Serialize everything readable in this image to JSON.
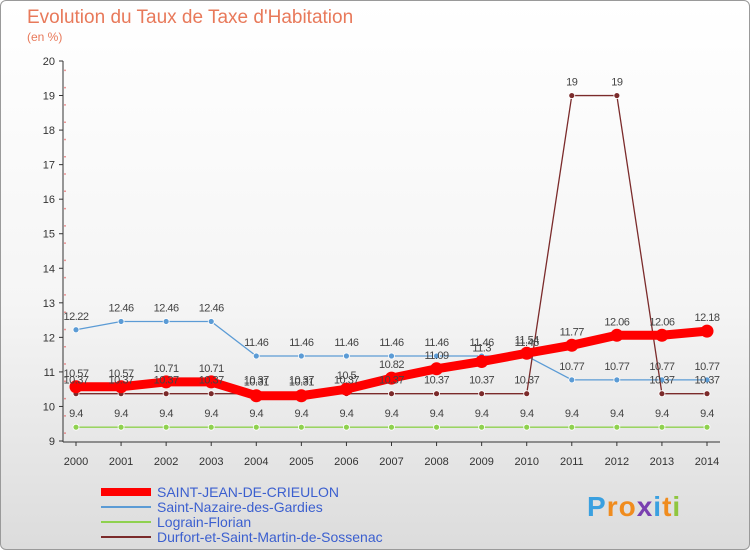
{
  "chart_data": {
    "type": "line",
    "title": "Evolution du Taux de Taxe d'Habitation",
    "subtitle": "(en %)",
    "ylim": [
      9,
      20
    ],
    "yticks": [
      9,
      10,
      11,
      12,
      13,
      14,
      15,
      16,
      17,
      18,
      19,
      20
    ],
    "categories": [
      "2000",
      "2001",
      "2002",
      "2003",
      "2004",
      "2005",
      "2006",
      "2007",
      "2008",
      "2009",
      "2010",
      "2011",
      "2012",
      "2013",
      "2014"
    ],
    "series": [
      {
        "name": "SAINT-JEAN-DE-CRIEULON",
        "color": "#ff0000",
        "values": [
          10.57,
          10.57,
          10.71,
          10.71,
          10.31,
          10.31,
          10.5,
          10.82,
          11.09,
          11.3,
          11.54,
          11.77,
          12.06,
          12.06,
          12.18
        ],
        "labels": [
          "10.57",
          "10.57",
          "10.71",
          "10.71",
          "10.31",
          "10.31",
          "10.5",
          "10.82",
          "11.09",
          "11.3",
          "11.54",
          "11.77",
          "12.06",
          "12.06",
          "12.18"
        ]
      },
      {
        "name": "Saint-Nazaire-des-Gardies",
        "color": "#5b9bd5",
        "values": [
          12.22,
          12.46,
          12.46,
          12.46,
          11.46,
          11.46,
          11.46,
          11.46,
          11.46,
          11.46,
          11.46,
          10.77,
          10.77,
          10.77,
          10.77
        ],
        "labels": [
          "12.22",
          "12.46",
          "12.46",
          "12.46",
          "11.46",
          "11.46",
          "11.46",
          "11.46",
          "11.46",
          "11.46",
          "11.46",
          "10.77",
          "10.77",
          "10.77",
          "10.77"
        ]
      },
      {
        "name": "Lograin-Florian",
        "color": "#8fd14f",
        "values": [
          9.4,
          9.4,
          9.4,
          9.4,
          9.4,
          9.4,
          9.4,
          9.4,
          9.4,
          9.4,
          9.4,
          9.4,
          9.4,
          9.4,
          9.4
        ],
        "labels": [
          "9.4",
          "9.4",
          "9.4",
          "9.4",
          "9.4",
          "9.4",
          "9.4",
          "9.4",
          "9.4",
          "9.4",
          "9.4",
          "9.4",
          "9.4",
          "9.4",
          "9.4"
        ]
      },
      {
        "name": "Durfort-et-Saint-Martin-de-Sossenac",
        "color": "#7b2b2b",
        "values": [
          10.37,
          10.37,
          10.37,
          10.37,
          10.37,
          10.37,
          10.37,
          10.37,
          10.37,
          10.37,
          10.37,
          19,
          19,
          10.37,
          10.37
        ],
        "labels": [
          "10.37",
          "10.37",
          "10.37",
          "10.37",
          "10.37",
          "10.37",
          "10.37",
          "10.37",
          "10.37",
          "10.37",
          "10.37",
          "19",
          "19",
          "10.37",
          "10.37"
        ]
      }
    ],
    "legend": "bottom"
  },
  "logo": {
    "letters": [
      "P",
      "r",
      "o",
      "x",
      "i",
      "t",
      "i"
    ],
    "colors": [
      "#3aa0e0",
      "#f08c1e",
      "#f08c1e",
      "#7a3fb0",
      "#3aa0e0",
      "#f08c1e",
      "#8fc63f"
    ]
  }
}
